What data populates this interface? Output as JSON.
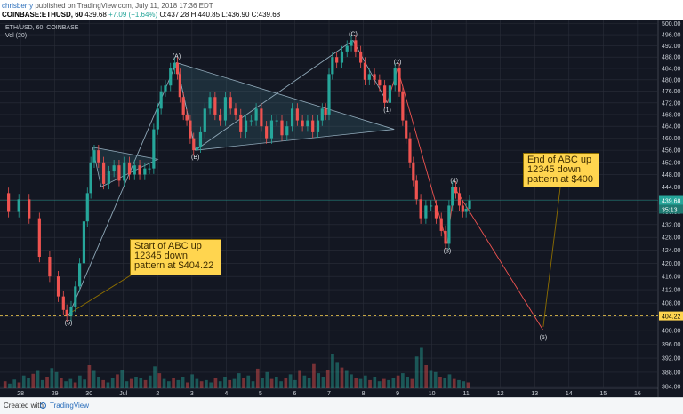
{
  "header": {
    "user": "chrisberry",
    "published_text": "published on TradingView.com, July 11, 2018 17:36 EDT",
    "symbol": "COINBASE:ETHUSD, 60",
    "last": "439.68",
    "change": "+7.09 (+1.64%)",
    "ohlc": "O:437.28 H:440.85 L:436.90 C:439.68"
  },
  "legend": {
    "series_title": "ETH/USD, 60, COINBASE",
    "volume_title": "Vol (20)"
  },
  "callouts": {
    "start": [
      "Start of ABC up",
      "12345 down",
      "pattern at $404.22"
    ],
    "end": [
      "End of ABC up",
      "12345 down",
      "pattern at $400"
    ]
  },
  "footer": {
    "text": "Created with",
    "brand": "TradingView"
  },
  "colors": {
    "background": "#131722",
    "grid": "#2a2e39",
    "up": "#26a69a",
    "down": "#ef5350",
    "trend_line": "#8fa8b8",
    "pattern_fill": "#3a6d7a",
    "price_tag": "#26a69a",
    "level_tag": "#ffd54f",
    "callout": "#ffd54f"
  },
  "chart_data": {
    "type": "candlestick",
    "x_tick_labels": [
      "28",
      "29",
      "30",
      "Jul",
      "2",
      "3",
      "4",
      "5",
      "6",
      "7",
      "8",
      "9",
      "10",
      "11",
      "12",
      "13",
      "14",
      "15",
      "16"
    ],
    "x_tick_values": [
      -3,
      -2,
      -1,
      0,
      1,
      2,
      3,
      4,
      5,
      6,
      7,
      8,
      9,
      10,
      11,
      12,
      13,
      14,
      15
    ],
    "xlim": [
      -3.6,
      15.6
    ],
    "y_tick_values": [
      500,
      496,
      492,
      488,
      484,
      480,
      476,
      472,
      468,
      464,
      460,
      456,
      452,
      448,
      444,
      440,
      436,
      432,
      428,
      424,
      420,
      416,
      412,
      408,
      404,
      400,
      396,
      392,
      388,
      384
    ],
    "ylim": [
      383.5,
      501.5
    ],
    "price_scale": "log",
    "last_price": 439.68,
    "last_price_label": "439.68",
    "secondary_price_label": "35:13",
    "level": 404.22,
    "level_label": "404.22",
    "price_path": [
      [
        -3.5,
        442
      ],
      [
        -3.2,
        436
      ],
      [
        -2.9,
        440
      ],
      [
        -2.6,
        434
      ],
      [
        -2.3,
        422
      ],
      [
        -2.0,
        416
      ],
      [
        -1.8,
        410
      ],
      [
        -1.7,
        406
      ],
      [
        -1.6,
        404.22
      ],
      [
        -1.45,
        407
      ],
      [
        -1.35,
        413
      ],
      [
        -1.2,
        420
      ],
      [
        -1.1,
        433
      ],
      [
        -1.0,
        442
      ],
      [
        -0.9,
        452
      ],
      [
        -0.8,
        456
      ],
      [
        -0.65,
        452
      ],
      [
        -0.5,
        445
      ],
      [
        -0.35,
        449
      ],
      [
        -0.2,
        451
      ],
      [
        -0.05,
        446
      ],
      [
        0.1,
        452
      ],
      [
        0.25,
        448
      ],
      [
        0.4,
        451
      ],
      [
        0.55,
        448
      ],
      [
        0.7,
        450
      ],
      [
        0.82,
        450
      ],
      [
        0.95,
        463
      ],
      [
        1.05,
        470
      ],
      [
        1.15,
        476
      ],
      [
        1.3,
        478
      ],
      [
        1.45,
        484
      ],
      [
        1.55,
        486
      ],
      [
        1.6,
        482
      ],
      [
        1.7,
        474
      ],
      [
        1.8,
        468
      ],
      [
        1.9,
        466
      ],
      [
        2.0,
        460
      ],
      [
        2.1,
        456
      ],
      [
        2.2,
        457
      ],
      [
        2.3,
        462
      ],
      [
        2.45,
        470
      ],
      [
        2.6,
        474
      ],
      [
        2.75,
        468
      ],
      [
        2.9,
        466
      ],
      [
        3.05,
        474
      ],
      [
        3.2,
        470
      ],
      [
        3.35,
        468
      ],
      [
        3.5,
        462
      ],
      [
        3.65,
        466
      ],
      [
        3.8,
        466
      ],
      [
        3.95,
        470
      ],
      [
        4.1,
        464
      ],
      [
        4.25,
        460
      ],
      [
        4.4,
        466
      ],
      [
        4.55,
        466
      ],
      [
        4.7,
        461
      ],
      [
        4.85,
        464
      ],
      [
        5.0,
        470
      ],
      [
        5.15,
        466
      ],
      [
        5.3,
        464
      ],
      [
        5.45,
        466
      ],
      [
        5.6,
        462
      ],
      [
        5.75,
        466
      ],
      [
        5.85,
        470
      ],
      [
        5.95,
        468
      ],
      [
        6.05,
        482
      ],
      [
        6.15,
        488
      ],
      [
        6.3,
        486
      ],
      [
        6.45,
        490
      ],
      [
        6.6,
        492
      ],
      [
        6.7,
        494
      ],
      [
        6.85,
        490
      ],
      [
        7.0,
        486
      ],
      [
        7.1,
        480
      ],
      [
        7.25,
        482
      ],
      [
        7.4,
        480
      ],
      [
        7.55,
        478
      ],
      [
        7.7,
        472
      ],
      [
        7.85,
        478
      ],
      [
        8.0,
        484
      ],
      [
        8.1,
        476
      ],
      [
        8.2,
        466
      ],
      [
        8.3,
        460
      ],
      [
        8.42,
        452
      ],
      [
        8.5,
        446
      ],
      [
        8.6,
        440
      ],
      [
        8.75,
        434
      ],
      [
        8.9,
        438
      ],
      [
        9.05,
        438
      ],
      [
        9.2,
        434
      ],
      [
        9.35,
        430
      ],
      [
        9.45,
        426
      ],
      [
        9.55,
        438
      ],
      [
        9.65,
        444
      ],
      [
        9.75,
        442
      ],
      [
        9.85,
        438
      ],
      [
        9.95,
        436
      ],
      [
        10.05,
        437
      ],
      [
        10.15,
        439.68
      ]
    ],
    "volume_ylim": [
      0,
      100
    ],
    "volumes": [
      12,
      8,
      15,
      10,
      22,
      18,
      25,
      30,
      14,
      20,
      35,
      28,
      18,
      12,
      16,
      10,
      22,
      15,
      40,
      30,
      20,
      14,
      10,
      18,
      24,
      32,
      12,
      16,
      20,
      18,
      14,
      22,
      38,
      26,
      16,
      12,
      18,
      14,
      20,
      10,
      24,
      16,
      12,
      14,
      10,
      18,
      12,
      20,
      14,
      16,
      26,
      18,
      22,
      12,
      34,
      18,
      28,
      16,
      20,
      12,
      18,
      24,
      14,
      30,
      22,
      18,
      42,
      26,
      20,
      32,
      60,
      44,
      36,
      30,
      24,
      18,
      16,
      22,
      14,
      20,
      12,
      16,
      14,
      18,
      22,
      26,
      20,
      16,
      55,
      70,
      40,
      30,
      28,
      20,
      18,
      24,
      16,
      14,
      12,
      10
    ],
    "waves": [
      {
        "label": "(5)",
        "x": -1.6,
        "y": 404.22,
        "pos": "below"
      },
      {
        "label": "(A)",
        "x": 1.55,
        "y": 486,
        "pos": "above"
      },
      {
        "label": "(B)",
        "x": 2.1,
        "y": 456,
        "pos": "below"
      },
      {
        "label": "(C)",
        "x": 6.7,
        "y": 494,
        "pos": "above"
      },
      {
        "label": "(1)",
        "x": 7.7,
        "y": 472,
        "pos": "below"
      },
      {
        "label": "(2)",
        "x": 8.0,
        "y": 484,
        "pos": "above"
      },
      {
        "label": "(3)",
        "x": 9.45,
        "y": 426,
        "pos": "below"
      },
      {
        "label": "(4)",
        "x": 9.65,
        "y": 444,
        "pos": "above"
      },
      {
        "label": "(5)",
        "x": 12.25,
        "y": 400,
        "pos": "below"
      }
    ],
    "projection": [
      [
        9.65,
        444
      ],
      [
        12.25,
        400
      ]
    ],
    "abc_lines": [
      [
        [
          -1.6,
          404.22
        ],
        [
          1.55,
          486
        ]
      ],
      [
        [
          1.55,
          486
        ],
        [
          2.1,
          456
        ]
      ],
      [
        [
          2.1,
          456
        ],
        [
          6.7,
          494
        ]
      ],
      [
        [
          6.7,
          494
        ],
        [
          7.7,
          472
        ]
      ]
    ],
    "wave_lines": [
      [
        [
          7.7,
          472
        ],
        [
          8.0,
          484
        ]
      ],
      [
        [
          8.0,
          484
        ],
        [
          9.45,
          426
        ]
      ],
      [
        [
          9.45,
          426
        ],
        [
          9.65,
          444
        ]
      ]
    ],
    "triangles": [
      [
        [
          -0.9,
          457
        ],
        [
          1.0,
          453
        ],
        [
          -0.65,
          444
        ]
      ],
      [
        [
          1.55,
          486
        ],
        [
          7.9,
          463
        ],
        [
          2.1,
          456
        ]
      ]
    ]
  }
}
